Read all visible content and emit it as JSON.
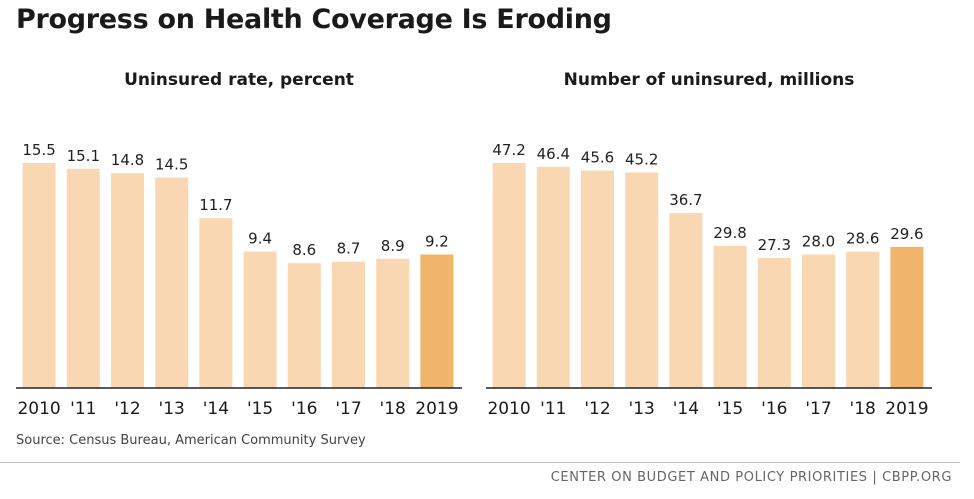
{
  "page": {
    "title": "Progress on Health Coverage Is Eroding",
    "source": "Source: Census Bureau, American Community Survey",
    "footer": "CENTER ON BUDGET AND POLICY PRIORITIES | CBPP.ORG"
  },
  "colors": {
    "bar": "#f8d7b2",
    "highlight": "#f0b56b",
    "axis": "#222222"
  },
  "chart_data": [
    {
      "type": "bar",
      "title": "Uninsured rate, percent",
      "categories": [
        "2010",
        "'11",
        "'12",
        "'13",
        "'14",
        "'15",
        "'16",
        "'17",
        "'18",
        "2019"
      ],
      "values": [
        15.5,
        15.1,
        14.8,
        14.5,
        11.7,
        9.4,
        8.6,
        8.7,
        8.9,
        9.2
      ],
      "value_labels": [
        "15.5",
        "15.1",
        "14.8",
        "14.5",
        "11.7",
        "9.4",
        "8.6",
        "8.7",
        "8.9",
        "9.2"
      ],
      "highlight_index": 9,
      "ylim": [
        0,
        15.5
      ],
      "grid": false
    },
    {
      "type": "bar",
      "title": "Number of uninsured, millions",
      "categories": [
        "2010",
        "'11",
        "'12",
        "'13",
        "'14",
        "'15",
        "'16",
        "'17",
        "'18",
        "2019"
      ],
      "values": [
        47.2,
        46.4,
        45.6,
        45.2,
        36.7,
        29.8,
        27.3,
        28.0,
        28.6,
        29.6
      ],
      "value_labels": [
        "47.2",
        "46.4",
        "45.6",
        "45.2",
        "36.7",
        "29.8",
        "27.3",
        "28.0",
        "28.6",
        "29.6"
      ],
      "highlight_index": 9,
      "ylim": [
        0,
        47.2
      ],
      "grid": false
    }
  ]
}
